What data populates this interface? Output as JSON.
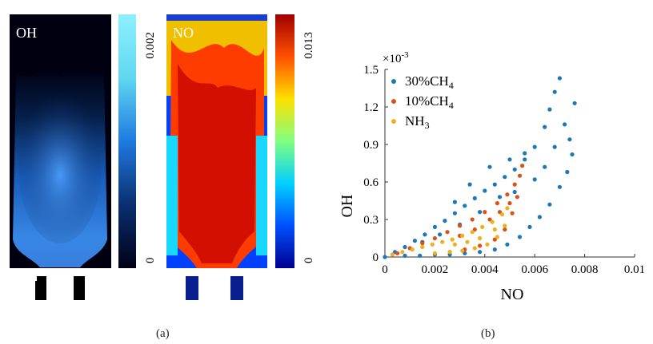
{
  "panel_a": {
    "oh_label": "OH",
    "no_label": "NO",
    "oh_colorbar": {
      "max_label": "0.002",
      "min_label": "0",
      "colors": [
        "#000016",
        "#0a2f70",
        "#1f7ae0",
        "#60d8f0",
        "#8ef0ff"
      ]
    },
    "no_colorbar": {
      "max_label": "0.013",
      "min_label": "0",
      "colors": [
        "#00008f",
        "#0050ff",
        "#00d0ff",
        "#80ff80",
        "#ffe000",
        "#ff5000",
        "#a00000"
      ]
    },
    "caption": "(a)"
  },
  "panel_b": {
    "caption": "(b)"
  },
  "chart_data": {
    "type": "scatter",
    "xlabel": "NO",
    "ylabel": "OH",
    "y_multiplier_label": "×10",
    "y_multiplier_exponent": "-3",
    "xlim": [
      0,
      0.01
    ],
    "ylim": [
      0,
      0.0015
    ],
    "x_ticks": [
      {
        "value": 0,
        "label": "0"
      },
      {
        "value": 0.002,
        "label": "0.002"
      },
      {
        "value": 0.004,
        "label": "0.004"
      },
      {
        "value": 0.006,
        "label": "0.006"
      },
      {
        "value": 0.008,
        "label": "0.008"
      },
      {
        "value": 0.01,
        "label": "0.01"
      }
    ],
    "y_ticks": [
      {
        "value": 0,
        "label": "0"
      },
      {
        "value": 0.0003,
        "label": "0.3"
      },
      {
        "value": 0.0006,
        "label": "0.6"
      },
      {
        "value": 0.0009,
        "label": "0.9"
      },
      {
        "value": 0.0012,
        "label": "1.2"
      },
      {
        "value": 0.0015,
        "label": "1.5"
      }
    ],
    "legend_position": "top-left",
    "series": [
      {
        "name": "30%CH",
        "name_subscript": "4",
        "color": "#1f77b4",
        "points": [
          [
            0.0,
            0.0
          ],
          [
            0.0004,
            4e-05
          ],
          [
            0.0008,
            8e-05
          ],
          [
            0.0012,
            0.00013
          ],
          [
            0.0016,
            0.00018
          ],
          [
            0.002,
            0.00024
          ],
          [
            0.0024,
            0.00029
          ],
          [
            0.0028,
            0.00035
          ],
          [
            0.0032,
            0.00041
          ],
          [
            0.0036,
            0.00047
          ],
          [
            0.004,
            0.00053
          ],
          [
            0.0044,
            0.00058
          ],
          [
            0.0048,
            0.00064
          ],
          [
            0.0052,
            0.0007
          ],
          [
            0.0056,
            0.00078
          ],
          [
            0.006,
            0.00088
          ],
          [
            0.0064,
            0.00104
          ],
          [
            0.0066,
            0.00118
          ],
          [
            0.0068,
            0.00132
          ],
          [
            0.007,
            0.00143
          ],
          [
            0.0072,
            0.00106
          ],
          [
            0.0074,
            0.00094
          ],
          [
            0.0076,
            0.00123
          ],
          [
            0.0075,
            0.00082
          ],
          [
            0.0073,
            0.00068
          ],
          [
            0.007,
            0.00056
          ],
          [
            0.0066,
            0.00042
          ],
          [
            0.0062,
            0.00032
          ],
          [
            0.0058,
            0.00024
          ],
          [
            0.0054,
            0.00016
          ],
          [
            0.0049,
            0.0001
          ],
          [
            0.0044,
            6e-05
          ],
          [
            0.0038,
            4e-05
          ],
          [
            0.0032,
            3e-05
          ],
          [
            0.0026,
            2e-05
          ],
          [
            0.002,
            2e-05
          ],
          [
            0.0014,
            1e-05
          ],
          [
            0.0008,
            1e-05
          ],
          [
            0.0034,
            0.00058
          ],
          [
            0.0042,
            0.00072
          ],
          [
            0.005,
            0.00078
          ],
          [
            0.0056,
            0.00083
          ],
          [
            0.0028,
            0.00044
          ],
          [
            0.0046,
            0.00048
          ],
          [
            0.0052,
            0.00052
          ],
          [
            0.006,
            0.00062
          ],
          [
            0.0064,
            0.00072
          ],
          [
            0.0068,
            0.00088
          ],
          [
            0.0038,
            0.00036
          ],
          [
            0.003,
            0.00026
          ],
          [
            0.0022,
            0.00018
          ],
          [
            0.0015,
            0.00012
          ]
        ]
      },
      {
        "name": "10%CH",
        "name_subscript": "4",
        "color": "#d95319",
        "points": [
          [
            0.0005,
            3e-05
          ],
          [
            0.001,
            7e-05
          ],
          [
            0.0015,
            0.00011
          ],
          [
            0.002,
            0.00015
          ],
          [
            0.0025,
            0.0002
          ],
          [
            0.003,
            0.00025
          ],
          [
            0.0035,
            0.0003
          ],
          [
            0.004,
            0.00036
          ],
          [
            0.0045,
            0.00043
          ],
          [
            0.0049,
            0.0005
          ],
          [
            0.0052,
            0.00058
          ],
          [
            0.0054,
            0.00065
          ],
          [
            0.0055,
            0.00073
          ],
          [
            0.0053,
            0.00048
          ],
          [
            0.0051,
            0.00035
          ],
          [
            0.0048,
            0.00022
          ],
          [
            0.0044,
            0.00014
          ],
          [
            0.0038,
            9e-05
          ],
          [
            0.0032,
            6e-05
          ],
          [
            0.0026,
            4e-05
          ],
          [
            0.0042,
            0.0003
          ],
          [
            0.0036,
            0.00022
          ],
          [
            0.003,
            0.00017
          ],
          [
            0.0046,
            0.00036
          ],
          [
            0.005,
            0.00043
          ]
        ]
      },
      {
        "name": "NH",
        "name_subscript": "3",
        "color": "#edb120",
        "points": [
          [
            0.0003,
            2e-05
          ],
          [
            0.0007,
            4e-05
          ],
          [
            0.0011,
            6e-05
          ],
          [
            0.0015,
            8e-05
          ],
          [
            0.0019,
            0.0001
          ],
          [
            0.0023,
            0.00012
          ],
          [
            0.0027,
            0.00014
          ],
          [
            0.0031,
            0.00017
          ],
          [
            0.0035,
            0.0002
          ],
          [
            0.0039,
            0.00024
          ],
          [
            0.0043,
            0.00028
          ],
          [
            0.0047,
            0.00034
          ],
          [
            0.0049,
            0.00039
          ],
          [
            0.0048,
            0.00025
          ],
          [
            0.0045,
            0.00016
          ],
          [
            0.0041,
            0.0001
          ],
          [
            0.0036,
            7e-05
          ],
          [
            0.0031,
            5e-05
          ],
          [
            0.0026,
            4e-05
          ],
          [
            0.002,
            3e-05
          ],
          [
            0.0038,
            0.00015
          ],
          [
            0.0033,
            0.00012
          ],
          [
            0.0028,
            0.0001
          ],
          [
            0.0044,
            0.00022
          ]
        ]
      }
    ]
  }
}
